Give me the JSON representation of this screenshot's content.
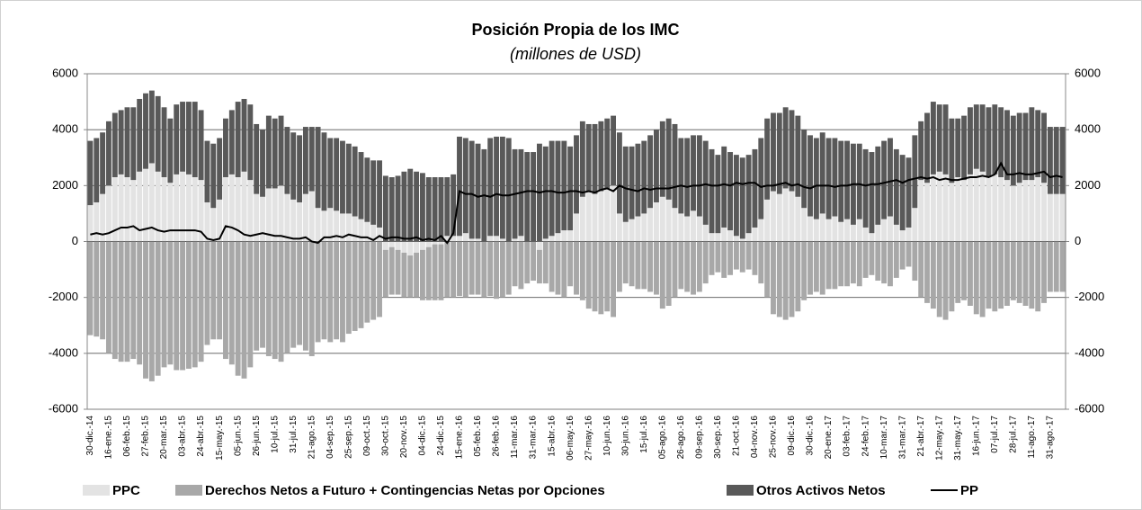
{
  "chart_data": {
    "type": "bar",
    "title": "Posición Propia de los IMC",
    "subtitle": "(millones de USD)",
    "categories": [
      "30-dic.-14",
      null,
      null,
      "16-ene.-15",
      null,
      null,
      "06-feb.-15",
      null,
      null,
      "27-feb.-15",
      null,
      null,
      "20-mar.-15",
      null,
      null,
      "03-abr.-15",
      null,
      null,
      "24-abr.-15",
      null,
      null,
      "15-may.-15",
      null,
      null,
      "05-jun.-15",
      null,
      null,
      "26-jun.-15",
      null,
      null,
      "10-jul.-15",
      null,
      null,
      "31-jul.-15",
      null,
      null,
      "21-ago.-15",
      null,
      null,
      "04-sep.-15",
      null,
      null,
      "25-sep.-15",
      null,
      null,
      "09-oct.-15",
      null,
      null,
      "30-oct.-15",
      null,
      null,
      "20-nov.-15",
      null,
      null,
      "04-dic.-15",
      null,
      null,
      "24-dic.-15",
      null,
      null,
      "15-ene.-16",
      null,
      null,
      "05-feb.-16",
      null,
      null,
      "26-feb.-16",
      null,
      null,
      "11-mar.-16",
      null,
      null,
      "31-mar.-16",
      null,
      null,
      "15-abr.-16",
      null,
      null,
      "06-may.-16",
      null,
      null,
      "27-may.-16",
      null,
      null,
      "10-jun.-16",
      null,
      null,
      "30-jun.-16",
      null,
      null,
      "15-jul.-16",
      null,
      null,
      "05-ago.-16",
      null,
      null,
      "26-ago.-16",
      null,
      null,
      "09-sep.-16",
      null,
      null,
      "30-sep.-16",
      null,
      null,
      "21-oct.-16",
      null,
      null,
      "04-nov.-16",
      null,
      null,
      "25-nov.-16",
      null,
      null,
      "09-dic.-16",
      null,
      null,
      "30-dic.-16",
      null,
      null,
      "20-ene.-17",
      null,
      null,
      "03-feb.-17",
      null,
      null,
      "24-feb.-17",
      null,
      null,
      "10-mar.-17",
      null,
      null,
      "31-mar.-17",
      null,
      null,
      "21-abr.-17",
      null,
      null,
      "12-may.-17",
      null,
      null,
      "31-may.-17",
      null,
      null,
      "16-jun.-17",
      null,
      null,
      "07-jul.-17",
      null,
      null,
      "28-jul.-17",
      null,
      null,
      "11-ago.-17",
      null,
      null,
      "31-ago.-17",
      null,
      null
    ],
    "series": [
      {
        "name": "PPC",
        "color": "#e3e3e3",
        "type": "bar",
        "values": [
          1300,
          1400,
          1700,
          2000,
          2300,
          2400,
          2300,
          2200,
          2500,
          2600,
          2800,
          2500,
          2300,
          2100,
          2400,
          2500,
          2400,
          2300,
          2200,
          1400,
          1200,
          1500,
          2300,
          2400,
          2300,
          2500,
          2200,
          1700,
          1600,
          1900,
          1900,
          2000,
          1700,
          1500,
          1400,
          1700,
          1800,
          1200,
          1100,
          1200,
          1100,
          1000,
          1000,
          900,
          800,
          700,
          600,
          500,
          -300,
          -200,
          -300,
          -400,
          -500,
          -400,
          -300,
          -200,
          -100,
          -100,
          200,
          200,
          200,
          300,
          100,
          100,
          0,
          200,
          200,
          100,
          0,
          100,
          200,
          0,
          0,
          -300,
          100,
          200,
          300,
          400,
          400,
          1000,
          1600,
          1800,
          1700,
          1800,
          1900,
          2000,
          1000,
          700,
          800,
          900,
          1000,
          1200,
          1400,
          1600,
          1500,
          1200,
          1000,
          900,
          1100,
          900,
          600,
          300,
          300,
          500,
          400,
          200,
          100,
          300,
          500,
          800,
          1500,
          1800,
          1700,
          1900,
          1800,
          1600,
          1200,
          900,
          800,
          1000,
          800,
          900,
          700,
          800,
          600,
          800,
          500,
          300,
          600,
          800,
          900,
          600,
          400,
          500,
          1200,
          2200,
          2100,
          2400,
          2500,
          2400,
          2100,
          2300,
          2200,
          2400,
          2600,
          2500,
          2300,
          2400,
          2300,
          2200,
          2000,
          2100,
          2200,
          2200,
          2300,
          2100,
          1700,
          1700,
          1700
        ]
      },
      {
        "name": "Derechos Netos a Futuro + Contingencias Netas por Opciones",
        "color": "#a8a8a8",
        "type": "bar",
        "values": [
          -3350,
          -3400,
          -3500,
          -4000,
          -4200,
          -4300,
          -4300,
          -4200,
          -4400,
          -4900,
          -5000,
          -4800,
          -4500,
          -4400,
          -4600,
          -4600,
          -4550,
          -4500,
          -4300,
          -3700,
          -3500,
          -3500,
          -4200,
          -4400,
          -4800,
          -4900,
          -4500,
          -3900,
          -3800,
          -4100,
          -4200,
          -4300,
          -4000,
          -3800,
          -3700,
          -3900,
          -4100,
          -3600,
          -3500,
          -3600,
          -3500,
          -3600,
          -3300,
          -3200,
          -3100,
          -2900,
          -2800,
          -2700,
          -1700,
          -1700,
          -1600,
          -1600,
          -1500,
          -1600,
          -1800,
          -1900,
          -2000,
          -2000,
          -2000,
          -2000,
          -1950,
          -2000,
          -1900,
          -1900,
          -2000,
          -1950,
          -2050,
          -2000,
          -1900,
          -1600,
          -1700,
          -1500,
          -1400,
          -1200,
          -1500,
          -1800,
          -1900,
          -2000,
          -1600,
          -1900,
          -2100,
          -2400,
          -2500,
          -2600,
          -2500,
          -2700,
          -1800,
          -1500,
          -1600,
          -1700,
          -1700,
          -1800,
          -1900,
          -2400,
          -2300,
          -2000,
          -1700,
          -1800,
          -1900,
          -1800,
          -1500,
          -1200,
          -1100,
          -1300,
          -1200,
          -1000,
          -1100,
          -1000,
          -1200,
          -1500,
          -2000,
          -2600,
          -2700,
          -2800,
          -2700,
          -2500,
          -2100,
          -1900,
          -1800,
          -1900,
          -1700,
          -1700,
          -1600,
          -1600,
          -1500,
          -1600,
          -1300,
          -1200,
          -1400,
          -1500,
          -1600,
          -1300,
          -1000,
          -900,
          -1400,
          -2000,
          -2200,
          -2400,
          -2700,
          -2800,
          -2500,
          -2200,
          -2100,
          -2300,
          -2600,
          -2700,
          -2400,
          -2500,
          -2400,
          -2300,
          -2100,
          -2200,
          -2300,
          -2400,
          -2500,
          -2200,
          -1800,
          -1800,
          -1800
        ]
      },
      {
        "name": "Otros Activos Netos",
        "color": "#595959",
        "type": "bar",
        "values": [
          2300,
          2300,
          2200,
          2300,
          2300,
          2300,
          2500,
          2600,
          2600,
          2700,
          2600,
          2700,
          2500,
          2300,
          2500,
          2500,
          2600,
          2700,
          2500,
          2200,
          2300,
          2200,
          2100,
          2300,
          2700,
          2600,
          2700,
          2500,
          2400,
          2600,
          2500,
          2500,
          2400,
          2400,
          2400,
          2400,
          2300,
          2900,
          2800,
          2500,
          2600,
          2600,
          2500,
          2500,
          2400,
          2300,
          2300,
          2400,
          2350,
          2300,
          2350,
          2500,
          2600,
          2500,
          2450,
          2300,
          2300,
          2300,
          2100,
          2200,
          3550,
          3400,
          3500,
          3400,
          3300,
          3500,
          3550,
          3650,
          3700,
          3200,
          3100,
          3200,
          3200,
          3500,
          3300,
          3400,
          3300,
          3200,
          3000,
          2800,
          2700,
          2400,
          2500,
          2500,
          2500,
          2500,
          2900,
          2700,
          2600,
          2600,
          2600,
          2600,
          2600,
          2700,
          2900,
          3000,
          2700,
          2800,
          2700,
          2900,
          3000,
          3000,
          2800,
          2900,
          2800,
          2900,
          2900,
          2800,
          2800,
          2900,
          2900,
          2800,
          2900,
          2900,
          2900,
          2900,
          2800,
          2900,
          2900,
          2900,
          2900,
          2800,
          2900,
          2800,
          2900,
          2700,
          2800,
          2900,
          2800,
          2800,
          2800,
          2700,
          2700,
          2500,
          2600,
          2100,
          2500,
          2600,
          2400,
          2500,
          2300,
          2100,
          2300,
          2400,
          2300,
          2400,
          2500,
          2500,
          2500,
          2500,
          2500,
          2500,
          2400,
          2600,
          2400,
          2500,
          2400,
          2400,
          2400
        ]
      },
      {
        "name": "PP",
        "color": "#000000",
        "type": "line",
        "values": [
          250,
          300,
          250,
          300,
          400,
          500,
          500,
          550,
          400,
          450,
          500,
          400,
          350,
          400,
          400,
          400,
          400,
          400,
          350,
          100,
          50,
          100,
          550,
          500,
          400,
          250,
          200,
          250,
          300,
          250,
          200,
          200,
          150,
          100,
          100,
          150,
          0,
          -50,
          150,
          150,
          200,
          150,
          250,
          200,
          150,
          150,
          50,
          200,
          100,
          150,
          150,
          100,
          100,
          150,
          50,
          100,
          50,
          200,
          -50,
          300,
          1800,
          1700,
          1700,
          1600,
          1650,
          1600,
          1700,
          1650,
          1650,
          1700,
          1750,
          1800,
          1800,
          1750,
          1800,
          1800,
          1750,
          1750,
          1800,
          1800,
          1750,
          1800,
          1750,
          1850,
          1900,
          1800,
          2000,
          1900,
          1850,
          1800,
          1900,
          1850,
          1900,
          1900,
          1900,
          1950,
          2000,
          1950,
          2000,
          2000,
          2050,
          2000,
          2000,
          2050,
          2000,
          2100,
          2050,
          2100,
          2100,
          1950,
          2000,
          2000,
          2050,
          2100,
          2000,
          2050,
          1950,
          1900,
          2000,
          2000,
          2000,
          1950,
          2000,
          2000,
          2050,
          2050,
          2000,
          2050,
          2050,
          2100,
          2150,
          2200,
          2100,
          2200,
          2250,
          2300,
          2250,
          2300,
          2200,
          2250,
          2200,
          2200,
          2250,
          2300,
          2300,
          2350,
          2300,
          2400,
          2800,
          2400,
          2400,
          2450,
          2400,
          2400,
          2450,
          2500,
          2300,
          2350,
          2300
        ]
      }
    ],
    "ylim": [
      -6000,
      6000
    ],
    "yticks": [
      -6000,
      -4000,
      -2000,
      0,
      2000,
      4000,
      6000
    ],
    "y2lim": [
      -6000,
      6000
    ],
    "y2ticks": [
      -6000,
      -4000,
      -2000,
      0,
      2000,
      4000,
      6000
    ],
    "grid": true,
    "legend": "bottom"
  }
}
